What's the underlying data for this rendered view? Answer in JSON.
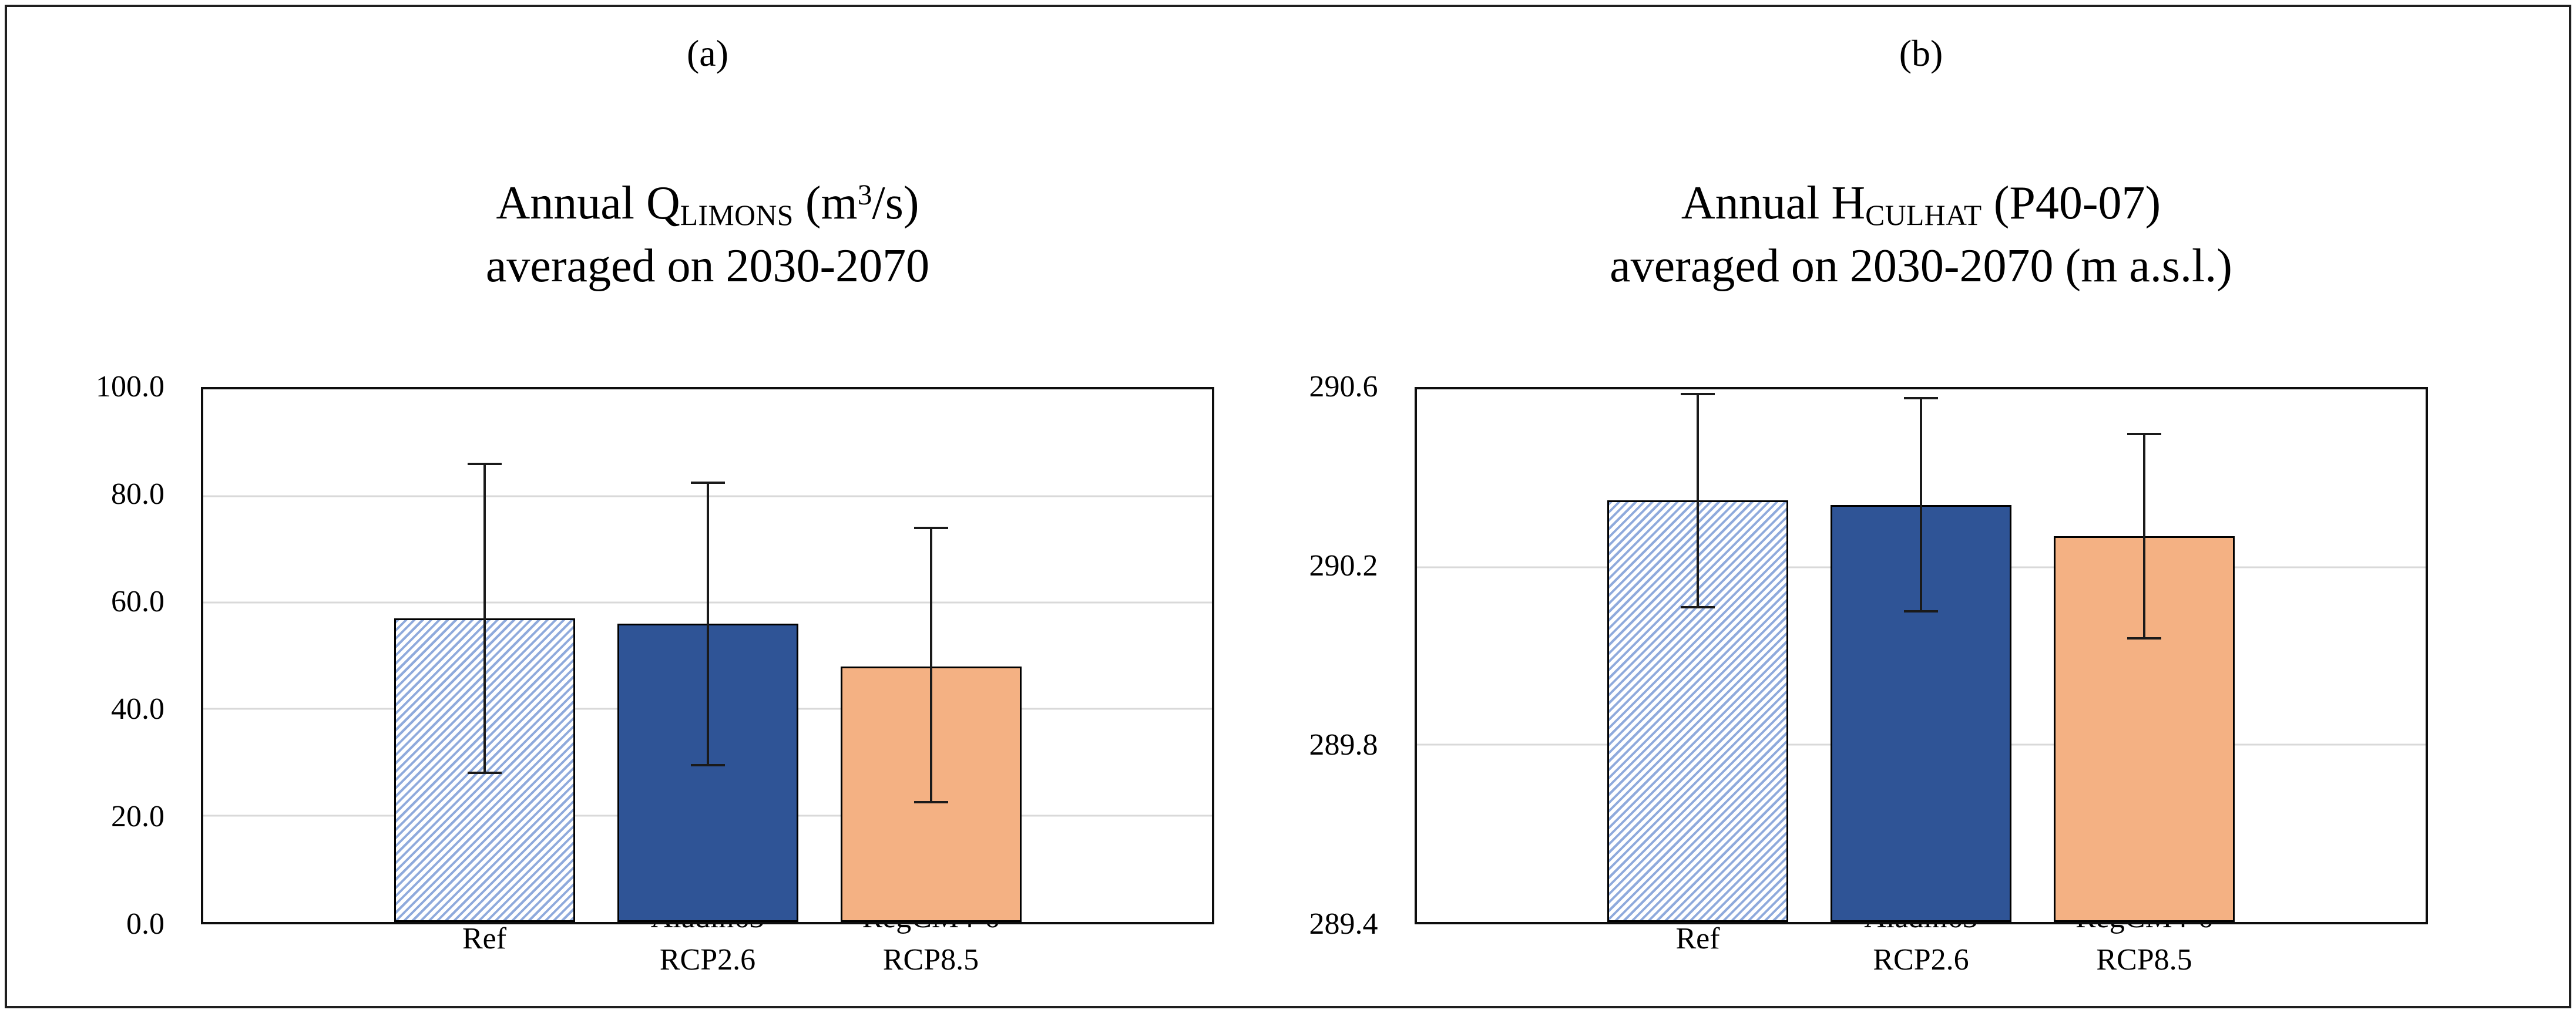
{
  "colors": {
    "figure_border": "#1f1f1f",
    "text": "#000000",
    "gridline": "#D9D9D9",
    "bar_border": "#000000",
    "error_bar": "#1a1a1a",
    "ref_hatch_blue": "#8FAADC",
    "aladin_dark_blue": "#2F5496",
    "regcm_orange": "#F4B183"
  },
  "chart_data": [
    {
      "type": "bar",
      "panel_label": "(a)",
      "title": "Annual Q LIMONS (m3/s) averaged on 2030-2070",
      "title_rich": [
        {
          "text": "Annual Q"
        },
        {
          "text": "LIMONS",
          "style": "sub"
        },
        {
          "text": " (m"
        },
        {
          "text": "3",
          "style": "sup"
        },
        {
          "text": "/s)"
        },
        {
          "text": "averaged on 2030-2070",
          "style": "newline"
        }
      ],
      "categories": [
        "Ref",
        "Aladin63 RCP2.6",
        "RegCM4-6 RCP8.5"
      ],
      "category_lines": [
        [
          "Ref"
        ],
        [
          "Aladin63",
          "RCP2.6"
        ],
        [
          "RegCM4-6",
          "RCP8.5"
        ]
      ],
      "values": [
        57.0,
        56.0,
        48.0
      ],
      "error_low": [
        28.0,
        29.5,
        22.5
      ],
      "error_high": [
        86.0,
        82.5,
        74.0
      ],
      "bar_styles": [
        "hatch",
        "blue",
        "orange"
      ],
      "ylim": [
        0,
        100
      ],
      "yticks": [
        {
          "value": 0,
          "label": "0.0"
        },
        {
          "value": 20,
          "label": "20.0"
        },
        {
          "value": 40,
          "label": "40.0"
        },
        {
          "value": 60,
          "label": "60.0"
        },
        {
          "value": 80,
          "label": "80.0"
        },
        {
          "value": 100,
          "label": "100.0"
        }
      ],
      "grid": true,
      "legend": "none"
    },
    {
      "type": "bar",
      "panel_label": "(b)",
      "title": "Annual H CULHAT (P40-07) averaged on 2030-2070 (m a.s.l.)",
      "title_rich": [
        {
          "text": "Annual H"
        },
        {
          "text": "CULHAT",
          "style": "sub"
        },
        {
          "text": " (P40-07)"
        },
        {
          "text": "averaged on 2030-2070 (m a.s.l.)",
          "style": "newline"
        }
      ],
      "categories": [
        "Ref",
        "Aladin63 RCP2.6",
        "RegCM4-6 RCP8.5"
      ],
      "category_lines": [
        [
          "Ref"
        ],
        [
          "Aladin63",
          "RCP2.6"
        ],
        [
          "RegCM4-6",
          "RCP8.5"
        ]
      ],
      "values": [
        290.35,
        290.34,
        290.27
      ],
      "error_low": [
        290.11,
        290.1,
        290.04
      ],
      "error_high": [
        290.59,
        290.58,
        290.5
      ],
      "bar_styles": [
        "hatch",
        "blue",
        "orange"
      ],
      "ylim": [
        289.4,
        290.6
      ],
      "yticks": [
        {
          "value": 289.4,
          "label": "289.4"
        },
        {
          "value": 289.8,
          "label": "289.8"
        },
        {
          "value": 290.2,
          "label": "290.2"
        },
        {
          "value": 290.6,
          "label": "290.6"
        }
      ],
      "grid": true,
      "legend": "none"
    }
  ]
}
